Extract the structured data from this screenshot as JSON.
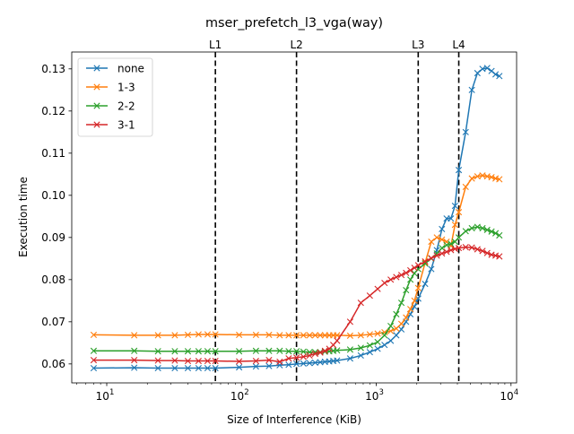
{
  "chart_data": {
    "type": "line",
    "title": "mser_prefetch_l3_vga(way)",
    "xlabel": "Size of Interference (KiB)",
    "ylabel": "Execution time",
    "x_scale": "log",
    "xlim": [
      5.5,
      11000
    ],
    "ylim": [
      0.0555,
      0.134
    ],
    "x_ticks": [
      {
        "value": 10,
        "base": "10",
        "exp": "1"
      },
      {
        "value": 100,
        "base": "10",
        "exp": "2"
      },
      {
        "value": 1000,
        "base": "10",
        "exp": "3"
      },
      {
        "value": 10000,
        "base": "10",
        "exp": "4"
      }
    ],
    "y_ticks": [
      "0.06",
      "0.07",
      "0.08",
      "0.09",
      "0.10",
      "0.11",
      "0.12",
      "0.13"
    ],
    "grid": false,
    "legend_position": "top-left",
    "cache_lines": [
      {
        "label": "L1",
        "x": 64
      },
      {
        "label": "L2",
        "x": 256
      },
      {
        "label": "L3",
        "x": 2048
      },
      {
        "label": "L4",
        "x": 4096
      }
    ],
    "x": [
      8,
      16,
      24,
      32,
      40,
      48,
      56,
      64,
      96,
      128,
      160,
      192,
      224,
      256,
      288,
      320,
      352,
      384,
      416,
      448,
      480,
      512,
      640,
      768,
      896,
      1024,
      1152,
      1280,
      1408,
      1536,
      1664,
      1792,
      1920,
      2048,
      2304,
      2560,
      2816,
      3072,
      3328,
      3584,
      3840,
      4096,
      4608,
      5120,
      5632,
      6144,
      6656,
      7168,
      7680,
      8192
    ],
    "series": [
      {
        "name": "none",
        "color": "#1f77b4",
        "values": [
          0.059,
          0.0591,
          0.059,
          0.059,
          0.059,
          0.059,
          0.059,
          0.059,
          0.0592,
          0.0594,
          0.0595,
          0.0597,
          0.0598,
          0.06,
          0.0601,
          0.0602,
          0.0603,
          0.0604,
          0.0605,
          0.0606,
          0.0607,
          0.0608,
          0.0613,
          0.062,
          0.0628,
          0.0636,
          0.0645,
          0.0655,
          0.0668,
          0.0682,
          0.07,
          0.0718,
          0.0736,
          0.0755,
          0.079,
          0.0825,
          0.087,
          0.092,
          0.0945,
          0.0945,
          0.0975,
          0.106,
          0.115,
          0.125,
          0.129,
          0.13,
          0.1302,
          0.1295,
          0.1287,
          0.1283
        ]
      },
      {
        "name": "1-3",
        "color": "#ff7f0e",
        "values": [
          0.0669,
          0.0668,
          0.0668,
          0.0668,
          0.0669,
          0.067,
          0.067,
          0.067,
          0.0669,
          0.0669,
          0.0669,
          0.0668,
          0.0668,
          0.0668,
          0.0668,
          0.0668,
          0.0668,
          0.0668,
          0.0668,
          0.0668,
          0.0668,
          0.0668,
          0.0667,
          0.0668,
          0.067,
          0.0672,
          0.0675,
          0.0678,
          0.0684,
          0.0695,
          0.071,
          0.073,
          0.075,
          0.078,
          0.084,
          0.089,
          0.09,
          0.0895,
          0.089,
          0.088,
          0.093,
          0.096,
          0.102,
          0.104,
          0.1045,
          0.1047,
          0.1045,
          0.1043,
          0.104,
          0.1038
        ]
      },
      {
        "name": "2-2",
        "color": "#2ca02c",
        "values": [
          0.0631,
          0.0631,
          0.063,
          0.063,
          0.063,
          0.063,
          0.063,
          0.063,
          0.063,
          0.0631,
          0.0631,
          0.0631,
          0.063,
          0.063,
          0.0629,
          0.0628,
          0.0628,
          0.0628,
          0.0629,
          0.063,
          0.0631,
          0.0632,
          0.0634,
          0.0638,
          0.0644,
          0.0652,
          0.0668,
          0.069,
          0.0718,
          0.0745,
          0.0775,
          0.08,
          0.0815,
          0.0825,
          0.0838,
          0.085,
          0.0862,
          0.0875,
          0.0882,
          0.0885,
          0.089,
          0.09,
          0.0915,
          0.0922,
          0.0925,
          0.0922,
          0.0918,
          0.0914,
          0.091,
          0.0905
        ]
      },
      {
        "name": "3-1",
        "color": "#d62728",
        "values": [
          0.0609,
          0.0609,
          0.0608,
          0.0608,
          0.0607,
          0.0607,
          0.0607,
          0.0607,
          0.0606,
          0.0607,
          0.0609,
          0.0605,
          0.0613,
          0.0615,
          0.0617,
          0.062,
          0.0624,
          0.0627,
          0.0631,
          0.0636,
          0.0645,
          0.0655,
          0.07,
          0.0745,
          0.0762,
          0.0778,
          0.0792,
          0.08,
          0.0806,
          0.0811,
          0.0816,
          0.0822,
          0.0828,
          0.0834,
          0.0843,
          0.0851,
          0.0857,
          0.0862,
          0.0866,
          0.087,
          0.0873,
          0.0875,
          0.0877,
          0.0876,
          0.0872,
          0.0868,
          0.0863,
          0.0859,
          0.0857,
          0.0855
        ]
      }
    ]
  }
}
